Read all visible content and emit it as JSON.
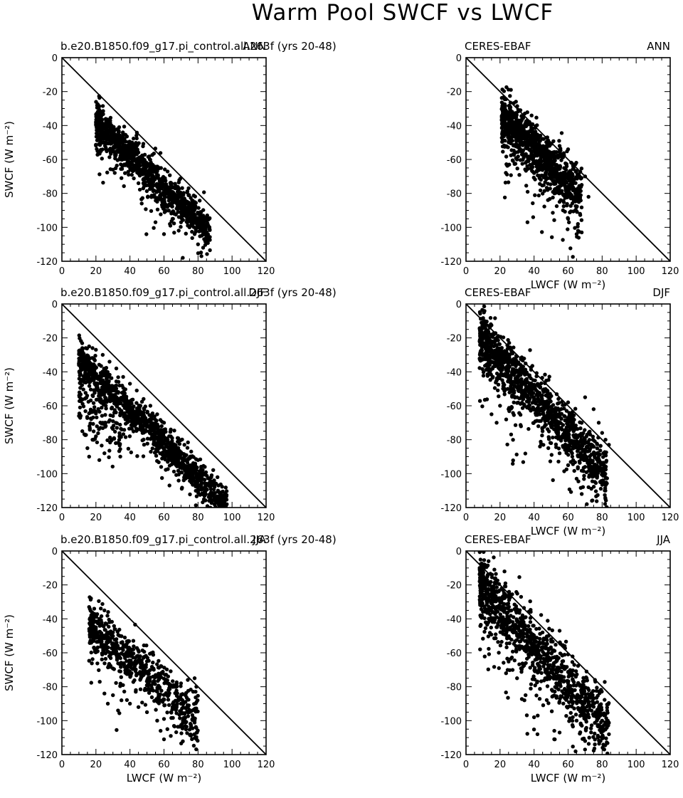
{
  "figure": {
    "title": "Warm Pool SWCF vs LWCF"
  },
  "axes": {
    "xlabel": "LWCF (W m⁻²)",
    "ylabel": "SWCF (W m⁻²)",
    "xlim": [
      0,
      120
    ],
    "ylim": [
      -120,
      0
    ],
    "xticks": [
      "0",
      "20",
      "40",
      "60",
      "80",
      "100",
      "120"
    ],
    "yticks": [
      "0",
      "-20",
      "-40",
      "-60",
      "-80",
      "-100",
      "-120"
    ]
  },
  "chart_data": [
    {
      "type": "scatter",
      "left_title": "b.e20.B1850.f09_g17.pi_control.all.263f (yrs 20-48)",
      "right_title": "ANN",
      "show_xlabel": false,
      "show_ylabel": true,
      "reference_line": [
        [
          0,
          0
        ],
        [
          120,
          -120
        ]
      ],
      "cloud": {
        "n": 1100,
        "x_range": [
          20,
          87
        ],
        "slope": -0.96,
        "intercept": -18.5,
        "spread": 5.5,
        "droop": 0,
        "seed": 11
      },
      "points": [
        [
          20,
          -38
        ],
        [
          22,
          -39
        ],
        [
          25,
          -41
        ],
        [
          28,
          -44
        ],
        [
          30,
          -46
        ],
        [
          33,
          -47
        ],
        [
          36,
          -51
        ],
        [
          40,
          -53
        ],
        [
          44,
          -57
        ],
        [
          48,
          -60
        ],
        [
          52,
          -64
        ],
        [
          56,
          -67
        ],
        [
          60,
          -71
        ],
        [
          64,
          -75
        ],
        [
          68,
          -79
        ],
        [
          72,
          -83
        ],
        [
          76,
          -86
        ],
        [
          80,
          -92
        ],
        [
          84,
          -100
        ],
        [
          86,
          -95
        ],
        [
          85,
          -105
        ],
        [
          83,
          -112
        ],
        [
          82,
          -117
        ],
        [
          80,
          -110
        ],
        [
          78,
          -104
        ],
        [
          74,
          -99
        ],
        [
          70,
          -97
        ],
        [
          66,
          -92
        ],
        [
          62,
          -88
        ],
        [
          58,
          -83
        ],
        [
          30,
          -66
        ],
        [
          35,
          -71
        ],
        [
          40,
          -62
        ],
        [
          22,
          -43
        ],
        [
          25,
          -39
        ],
        [
          55,
          -97
        ],
        [
          60,
          -104
        ],
        [
          75,
          -100
        ],
        [
          65,
          -95
        ],
        [
          45,
          -74
        ]
      ]
    },
    {
      "type": "scatter",
      "left_title": "CERES-EBAF",
      "right_title": "ANN",
      "show_xlabel": true,
      "show_ylabel": false,
      "reference_line": [
        [
          0,
          0
        ],
        [
          120,
          -120
        ]
      ],
      "cloud": {
        "n": 1000,
        "x_range": [
          21,
          68
        ],
        "slope": -1.05,
        "intercept": -11,
        "spread": 7.5,
        "droop": 0,
        "seed": 23
      },
      "points": [
        [
          21,
          -35
        ],
        [
          23,
          -34
        ],
        [
          25,
          -36
        ],
        [
          28,
          -38
        ],
        [
          30,
          -41
        ],
        [
          32,
          -31
        ],
        [
          35,
          -45
        ],
        [
          38,
          -48
        ],
        [
          40,
          -52
        ],
        [
          43,
          -55
        ],
        [
          45,
          -58
        ],
        [
          48,
          -61
        ],
        [
          50,
          -63
        ],
        [
          53,
          -66
        ],
        [
          55,
          -70
        ],
        [
          58,
          -74
        ],
        [
          60,
          -78
        ],
        [
          62,
          -82
        ],
        [
          65,
          -88
        ],
        [
          67,
          -92
        ],
        [
          68,
          -103
        ],
        [
          65,
          -104
        ],
        [
          60,
          -95
        ],
        [
          57,
          -90
        ],
        [
          55,
          -85
        ],
        [
          52,
          -80
        ],
        [
          48,
          -78
        ],
        [
          44,
          -72
        ],
        [
          40,
          -68
        ],
        [
          36,
          -64
        ],
        [
          35,
          -62
        ],
        [
          55,
          -52
        ],
        [
          60,
          -54
        ],
        [
          62,
          -62
        ],
        [
          70,
          -70
        ],
        [
          72,
          -82
        ],
        [
          68,
          -75
        ],
        [
          50,
          -58
        ],
        [
          45,
          -65
        ],
        [
          42,
          -62
        ]
      ]
    },
    {
      "type": "scatter",
      "left_title": "b.e20.B1850.f09_g17.pi_control.all.263f (yrs 20-48)",
      "right_title": "DJF",
      "show_xlabel": false,
      "show_ylabel": true,
      "reference_line": [
        [
          0,
          0
        ],
        [
          120,
          -120
        ]
      ],
      "cloud": {
        "n": 1300,
        "x_range": [
          10,
          97
        ],
        "slope": -1.0,
        "intercept": -22,
        "spread": 5,
        "droop": 35,
        "seed": 37
      },
      "points": [
        [
          10,
          -35
        ],
        [
          11,
          -30
        ],
        [
          12,
          -28
        ],
        [
          14,
          -26
        ],
        [
          16,
          -25
        ],
        [
          18,
          -26
        ],
        [
          20,
          -27
        ],
        [
          24,
          -30
        ],
        [
          28,
          -34
        ],
        [
          32,
          -38
        ],
        [
          36,
          -43
        ],
        [
          40,
          -47
        ],
        [
          44,
          -51
        ],
        [
          48,
          -56
        ],
        [
          52,
          -60
        ],
        [
          56,
          -65
        ],
        [
          60,
          -70
        ],
        [
          64,
          -74
        ],
        [
          68,
          -79
        ],
        [
          72,
          -83
        ],
        [
          76,
          -87
        ],
        [
          80,
          -92
        ],
        [
          84,
          -96
        ],
        [
          88,
          -101
        ],
        [
          92,
          -107
        ],
        [
          95,
          -113
        ],
        [
          96,
          -118
        ],
        [
          94,
          -119
        ],
        [
          90,
          -116
        ],
        [
          12,
          -75
        ],
        [
          15,
          -85
        ],
        [
          16,
          -90
        ],
        [
          18,
          -80
        ],
        [
          20,
          -78
        ],
        [
          22,
          -92
        ],
        [
          25,
          -88
        ],
        [
          24,
          -70
        ],
        [
          30,
          -66
        ],
        [
          35,
          -63
        ],
        [
          40,
          -60
        ]
      ]
    },
    {
      "type": "scatter",
      "left_title": "CERES-EBAF",
      "right_title": "DJF",
      "show_xlabel": true,
      "show_ylabel": false,
      "reference_line": [
        [
          0,
          0
        ],
        [
          120,
          -120
        ]
      ],
      "cloud": {
        "n": 1200,
        "x_range": [
          8,
          83
        ],
        "slope": -1.08,
        "intercept": -11,
        "spread": 8,
        "droop": 0,
        "seed": 41
      },
      "points": [
        [
          8,
          -22
        ],
        [
          10,
          -23
        ],
        [
          12,
          -25
        ],
        [
          15,
          -28
        ],
        [
          18,
          -30
        ],
        [
          20,
          -33
        ],
        [
          24,
          -37
        ],
        [
          28,
          -41
        ],
        [
          32,
          -46
        ],
        [
          36,
          -50
        ],
        [
          40,
          -55
        ],
        [
          44,
          -59
        ],
        [
          48,
          -64
        ],
        [
          52,
          -69
        ],
        [
          56,
          -73
        ],
        [
          60,
          -78
        ],
        [
          64,
          -83
        ],
        [
          68,
          -90
        ],
        [
          70,
          -96
        ],
        [
          72,
          -108
        ],
        [
          74,
          -116
        ],
        [
          71,
          -118
        ],
        [
          68,
          -112
        ],
        [
          65,
          -103
        ],
        [
          60,
          -95
        ],
        [
          55,
          -88
        ],
        [
          50,
          -82
        ],
        [
          45,
          -75
        ],
        [
          75,
          -62
        ],
        [
          78,
          -70
        ],
        [
          80,
          -76
        ],
        [
          82,
          -80
        ],
        [
          84,
          -83
        ],
        [
          70,
          -55
        ],
        [
          60,
          -58
        ],
        [
          20,
          -60
        ],
        [
          15,
          -65
        ],
        [
          18,
          -70
        ],
        [
          25,
          -62
        ],
        [
          30,
          -55
        ]
      ]
    },
    {
      "type": "scatter",
      "left_title": "b.e20.B1850.f09_g17.pi_control.all.263f (yrs 20-48)",
      "right_title": "JJA",
      "show_xlabel": true,
      "show_ylabel": true,
      "reference_line": [
        [
          0,
          0
        ],
        [
          120,
          -120
        ]
      ],
      "cloud": {
        "n": 650,
        "x_range": [
          16,
          80
        ],
        "slope": -0.88,
        "intercept": -29,
        "spread": 7.5,
        "droop": 0,
        "seed": 53
      },
      "points": [
        [
          16,
          -33
        ],
        [
          17,
          -40
        ],
        [
          18,
          -48
        ],
        [
          19,
          -34
        ],
        [
          20,
          -45
        ],
        [
          22,
          -40
        ],
        [
          25,
          -35
        ],
        [
          28,
          -42
        ],
        [
          30,
          -48
        ],
        [
          34,
          -50
        ],
        [
          38,
          -55
        ],
        [
          42,
          -58
        ],
        [
          46,
          -62
        ],
        [
          50,
          -65
        ],
        [
          54,
          -70
        ],
        [
          58,
          -74
        ],
        [
          62,
          -78
        ],
        [
          66,
          -80
        ],
        [
          70,
          -78
        ],
        [
          74,
          -76
        ],
        [
          78,
          -75
        ],
        [
          79,
          -80
        ],
        [
          78,
          -100
        ],
        [
          75,
          -95
        ],
        [
          70,
          -90
        ],
        [
          65,
          -92
        ],
        [
          60,
          -99
        ],
        [
          62,
          -105
        ],
        [
          58,
          -106
        ],
        [
          60,
          -111
        ],
        [
          64,
          -109
        ],
        [
          56,
          -100
        ],
        [
          50,
          -95
        ],
        [
          45,
          -92
        ],
        [
          40,
          -90
        ],
        [
          35,
          -88
        ],
        [
          30,
          -85
        ],
        [
          25,
          -84
        ],
        [
          27,
          -90
        ],
        [
          33,
          -94
        ]
      ]
    },
    {
      "type": "scatter",
      "left_title": "CERES-EBAF",
      "right_title": "JJA",
      "show_xlabel": true,
      "show_ylabel": false,
      "reference_line": [
        [
          0,
          0
        ],
        [
          120,
          -120
        ]
      ],
      "cloud": {
        "n": 1100,
        "x_range": [
          8,
          84
        ],
        "slope": -1.1,
        "intercept": -12,
        "spread": 9,
        "droop": 0,
        "seed": 67
      },
      "points": [
        [
          8,
          -10
        ],
        [
          10,
          -12
        ],
        [
          12,
          -18
        ],
        [
          14,
          -20
        ],
        [
          16,
          -24
        ],
        [
          18,
          -28
        ],
        [
          20,
          -30
        ],
        [
          22,
          -35
        ],
        [
          24,
          -40
        ],
        [
          26,
          -45
        ],
        [
          28,
          -48
        ],
        [
          30,
          -50
        ],
        [
          33,
          -52
        ],
        [
          36,
          -55
        ],
        [
          40,
          -58
        ],
        [
          44,
          -62
        ],
        [
          48,
          -65
        ],
        [
          52,
          -70
        ],
        [
          56,
          -74
        ],
        [
          60,
          -78
        ],
        [
          64,
          -82
        ],
        [
          68,
          -86
        ],
        [
          72,
          -90
        ],
        [
          76,
          -95
        ],
        [
          80,
          -100
        ],
        [
          82,
          -105
        ],
        [
          84,
          -108
        ],
        [
          80,
          -106
        ],
        [
          70,
          -112
        ],
        [
          65,
          -100
        ],
        [
          55,
          -107
        ],
        [
          42,
          -108
        ],
        [
          40,
          -98
        ],
        [
          35,
          -85
        ],
        [
          30,
          -75
        ],
        [
          40,
          -50
        ],
        [
          45,
          -48
        ],
        [
          55,
          -47
        ],
        [
          58,
          -56
        ],
        [
          50,
          -52
        ]
      ]
    }
  ]
}
